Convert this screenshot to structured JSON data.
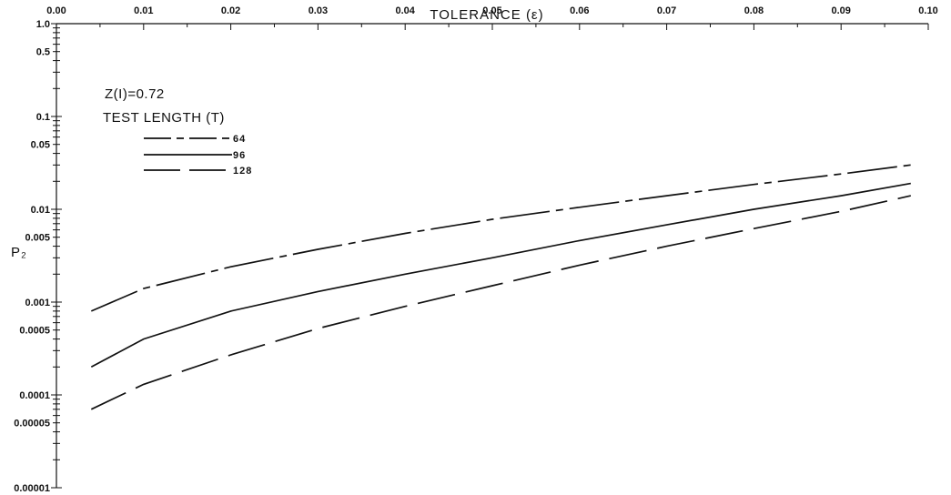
{
  "chart_data": {
    "type": "line",
    "title": "",
    "xlabel": "TOLERANCE  (ε)",
    "ylabel": "P₂",
    "xlim": [
      0.0,
      0.1
    ],
    "ylim": [
      1e-05,
      1.0
    ],
    "yscale": "log",
    "grid": false,
    "legend_position": "top-left",
    "x_tick_labels": [
      "0.00",
      "0.01",
      "0.02",
      "0.03",
      "0.04",
      "0.05",
      "0.06",
      "0.07",
      "0.08",
      "0.09",
      "0.10"
    ],
    "y_tick_labels": [
      "1.0",
      "0.5",
      "0.1",
      "0.05",
      "0.01",
      "0.005",
      "0.001",
      "0.0005",
      "0.0001",
      "0.00005",
      "0.00001"
    ],
    "annotations": [
      "Z(I)=0.72",
      "TEST LENGTH (T)"
    ],
    "series": [
      {
        "name": "64",
        "dash": "dash-dot",
        "x": [
          0.004,
          0.01,
          0.02,
          0.03,
          0.04,
          0.05,
          0.06,
          0.07,
          0.08,
          0.09,
          0.098
        ],
        "y": [
          0.0008,
          0.0014,
          0.0024,
          0.0037,
          0.0055,
          0.0078,
          0.0105,
          0.014,
          0.0185,
          0.024,
          0.03
        ]
      },
      {
        "name": "96",
        "dash": "solid",
        "x": [
          0.004,
          0.01,
          0.02,
          0.03,
          0.04,
          0.05,
          0.06,
          0.07,
          0.08,
          0.09,
          0.098
        ],
        "y": [
          0.0002,
          0.0004,
          0.0008,
          0.0013,
          0.002,
          0.003,
          0.0046,
          0.0068,
          0.01,
          0.014,
          0.019
        ]
      },
      {
        "name": "128",
        "dash": "long-dash",
        "x": [
          0.004,
          0.01,
          0.02,
          0.03,
          0.04,
          0.05,
          0.06,
          0.07,
          0.08,
          0.09,
          0.098
        ],
        "y": [
          7e-05,
          0.00013,
          0.00027,
          0.00052,
          0.0009,
          0.0015,
          0.0025,
          0.004,
          0.0062,
          0.0095,
          0.014
        ]
      }
    ]
  }
}
